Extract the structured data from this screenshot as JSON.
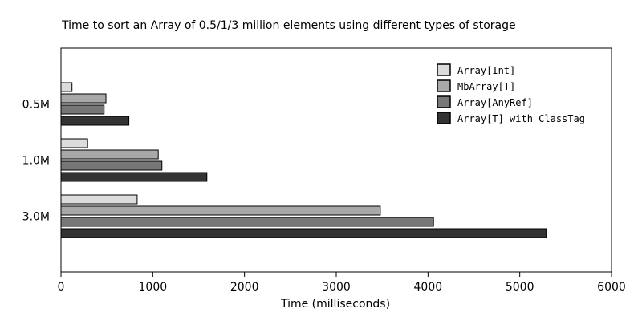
{
  "chart_data": {
    "type": "bar",
    "orientation": "horizontal",
    "title": "Time to sort an Array of 0.5/1/3 million elements using different types of storage",
    "xlabel": "Time (milliseconds)",
    "ylabel": "",
    "xlim": [
      0,
      6000
    ],
    "x_ticks": [
      "0",
      "1000",
      "2000",
      "3000",
      "4000",
      "5000",
      "6000"
    ],
    "categories": [
      "0.5M",
      "1.0M",
      "3.0M"
    ],
    "series": [
      {
        "name": "Array[Int]",
        "color": "#dcdcdc",
        "values": [
          120,
          290,
          830
        ]
      },
      {
        "name": "MbArray[T]",
        "color": "#a9a9a9",
        "values": [
          490,
          1060,
          3480
        ]
      },
      {
        "name": "Array[AnyRef]",
        "color": "#777777",
        "values": [
          470,
          1100,
          4060
        ]
      },
      {
        "name": "Array[T] with ClassTag",
        "color": "#333333",
        "values": [
          740,
          1590,
          5290
        ]
      }
    ],
    "grid": false,
    "legend_position": "top-right"
  }
}
